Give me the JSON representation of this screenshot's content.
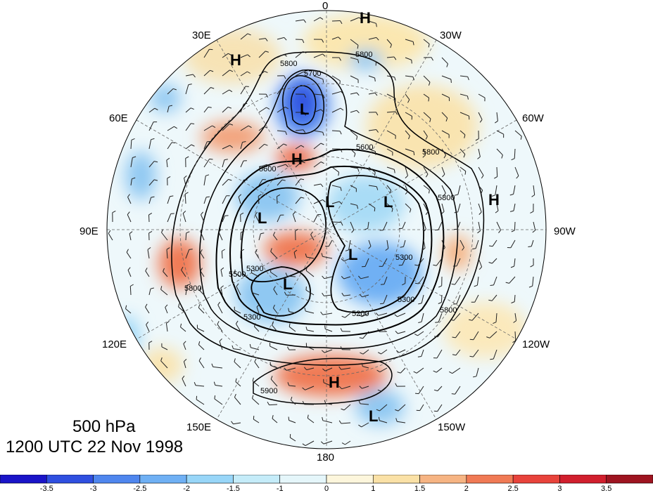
{
  "title": {
    "level": "500 hPa",
    "datetime": "1200 UTC 22 Nov 1998"
  },
  "longitude_labels": {
    "n0": "0",
    "w30": "30W",
    "e30": "30E",
    "w60": "60W",
    "e60": "60E",
    "w90": "90W",
    "e90": "90E",
    "w120": "120W",
    "e120": "120E",
    "w150": "150W",
    "e150": "150E",
    "s180": "180"
  },
  "pressure_centers": [
    {
      "label": "H"
    },
    {
      "label": "H"
    },
    {
      "label": "L"
    },
    {
      "label": "H"
    },
    {
      "label": "L"
    },
    {
      "label": "L"
    },
    {
      "label": "L"
    },
    {
      "label": "L"
    },
    {
      "label": "L"
    },
    {
      "label": "H"
    },
    {
      "label": "H"
    },
    {
      "label": "L"
    }
  ],
  "contour_labels": [
    "5800",
    "5800",
    "5700",
    "5600",
    "5800",
    "5600",
    "5300",
    "5500",
    "5800",
    "5300",
    "5200",
    "5300",
    "5300",
    "5800",
    "5900",
    "5800"
  ],
  "colorbar": {
    "ticks": [
      "-3.5",
      "-3",
      "-2.5",
      "-2",
      "-1.5",
      "-1",
      "0",
      "1",
      "1.5",
      "2",
      "2.5",
      "3",
      "3.5"
    ],
    "colors": [
      "#1a14c8",
      "#2f4fe0",
      "#4f86ee",
      "#6fb0f4",
      "#98d6f8",
      "#c5ecf9",
      "#e5f6fa",
      "#fdf6dc",
      "#fae1a6",
      "#f6b483",
      "#f07a55",
      "#e8433b",
      "#d11f2d",
      "#9e1420"
    ]
  }
}
